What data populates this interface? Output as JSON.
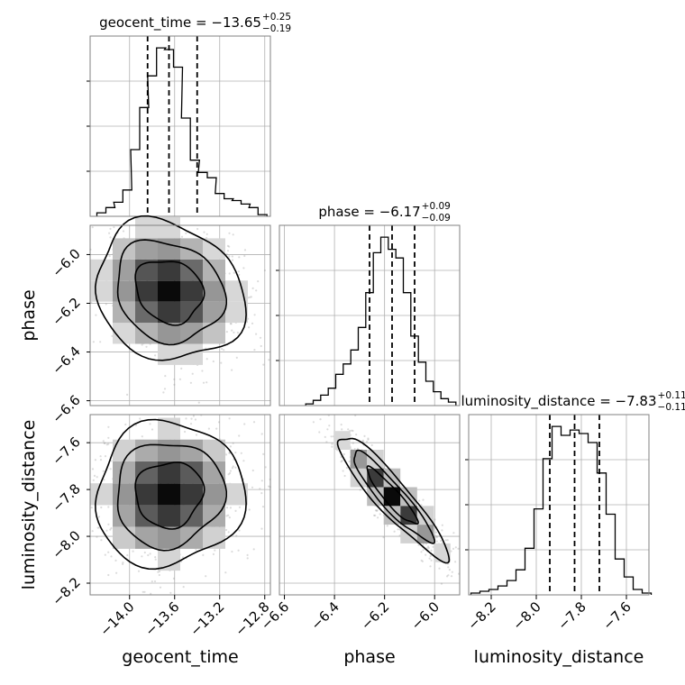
{
  "chart_data": [
    {
      "type": "histogram",
      "panel": "geocent_time-1d",
      "title": {
        "label": "geocent_time",
        "value": "−13.65",
        "upper": "+0.25",
        "lower": "−0.19"
      },
      "xlim": [
        -14.35,
        -12.75
      ],
      "bins": [
        -14.25,
        -14.17,
        -14.1,
        -14.02,
        -13.95,
        -13.87,
        -13.8,
        -13.72,
        -13.65,
        -13.57,
        -13.5,
        -13.42,
        -13.35,
        -13.27,
        -13.2,
        -13.12,
        -13.05,
        -12.97,
        -12.9,
        -12.82
      ],
      "values": [
        2,
        5,
        8,
        15,
        38,
        62,
        80,
        96,
        95,
        85,
        56,
        32,
        25,
        22,
        13,
        10,
        9,
        7,
        5,
        1
      ],
      "quantiles": [
        -13.84,
        -13.65,
        -13.4
      ],
      "grid": true
    },
    {
      "type": "histogram",
      "panel": "phase-1d",
      "title": {
        "label": "phase",
        "value": "−6.17",
        "upper": "+0.09",
        "lower": "−0.09"
      },
      "xlim": [
        -6.62,
        -5.9
      ],
      "bins": [
        -6.5,
        -6.47,
        -6.44,
        -6.41,
        -6.38,
        -6.35,
        -6.32,
        -6.29,
        -6.26,
        -6.23,
        -6.2,
        -6.17,
        -6.14,
        -6.11,
        -6.08,
        -6.05,
        -6.02,
        -5.99,
        -5.96,
        -5.93
      ],
      "values": [
        1,
        3,
        6,
        10,
        18,
        24,
        32,
        45,
        65,
        88,
        97,
        90,
        85,
        65,
        40,
        25,
        14,
        8,
        4,
        2
      ],
      "quantiles": [
        -6.26,
        -6.17,
        -6.08
      ],
      "grid": true
    },
    {
      "type": "histogram",
      "panel": "luminosity_distance-1d",
      "title": {
        "label": "luminosity_distance",
        "value": "−7.83",
        "upper": "+0.11",
        "lower": "−0.11"
      },
      "xlim": [
        -8.3,
        -7.5
      ],
      "bins": [
        -8.27,
        -8.23,
        -8.19,
        -8.15,
        -8.11,
        -8.07,
        -8.03,
        -7.99,
        -7.95,
        -7.91,
        -7.87,
        -7.83,
        -7.79,
        -7.75,
        -7.71,
        -7.67,
        -7.63,
        -7.59,
        -7.55,
        -7.51
      ],
      "values": [
        1,
        2,
        3,
        5,
        8,
        14,
        26,
        48,
        76,
        94,
        89,
        92,
        90,
        85,
        68,
        45,
        20,
        10,
        3,
        1
      ],
      "quantiles": [
        -7.94,
        -7.83,
        -7.72
      ],
      "grid": true
    },
    {
      "type": "2d-density",
      "panel": "geocent_time-vs-phase",
      "xlim": [
        -14.35,
        -12.75
      ],
      "ylim": [
        -6.62,
        -5.88
      ],
      "center": [
        -13.65,
        -6.15
      ],
      "spread": [
        0.3,
        0.13
      ],
      "correlation": -0.15,
      "grid": true
    },
    {
      "type": "2d-density",
      "panel": "geocent_time-vs-luminosity_distance",
      "xlim": [
        -14.35,
        -12.75
      ],
      "ylim": [
        -8.25,
        -7.48
      ],
      "center": [
        -13.65,
        -7.82
      ],
      "spread": [
        0.3,
        0.14
      ],
      "correlation": 0.05,
      "grid": true
    },
    {
      "type": "2d-density",
      "panel": "phase-vs-luminosity_distance",
      "xlim": [
        -6.62,
        -5.9
      ],
      "ylim": [
        -8.25,
        -7.48
      ],
      "center": [
        -6.17,
        -7.83
      ],
      "spread": [
        0.1,
        0.12
      ],
      "correlation": -0.92,
      "grid": true
    }
  ],
  "axes": {
    "geocent_time": {
      "label": "geocent_time",
      "ticks": [
        {
          "v": -14.0,
          "t": "−14.0"
        },
        {
          "v": -13.6,
          "t": "−13.6"
        },
        {
          "v": -13.2,
          "t": "−13.2"
        },
        {
          "v": -12.8,
          "t": "−12.8"
        }
      ]
    },
    "phase": {
      "label": "phase",
      "ticks": [
        {
          "v": -6.6,
          "t": "−6.6"
        },
        {
          "v": -6.4,
          "t": "−6.4"
        },
        {
          "v": -6.2,
          "t": "−6.2"
        },
        {
          "v": -6.0,
          "t": "−6.0"
        }
      ]
    },
    "luminosity_distance": {
      "label": "luminosity_distance",
      "ticks": [
        {
          "v": -8.2,
          "t": "−8.2"
        },
        {
          "v": -8.0,
          "t": "−8.0"
        },
        {
          "v": -7.8,
          "t": "−7.8"
        },
        {
          "v": -7.6,
          "t": "−7.6"
        }
      ]
    }
  },
  "colors": {
    "ink": "#000000",
    "grid": "#b0b0b0",
    "frame": "#808080",
    "scatter": "#9a9a9a"
  }
}
